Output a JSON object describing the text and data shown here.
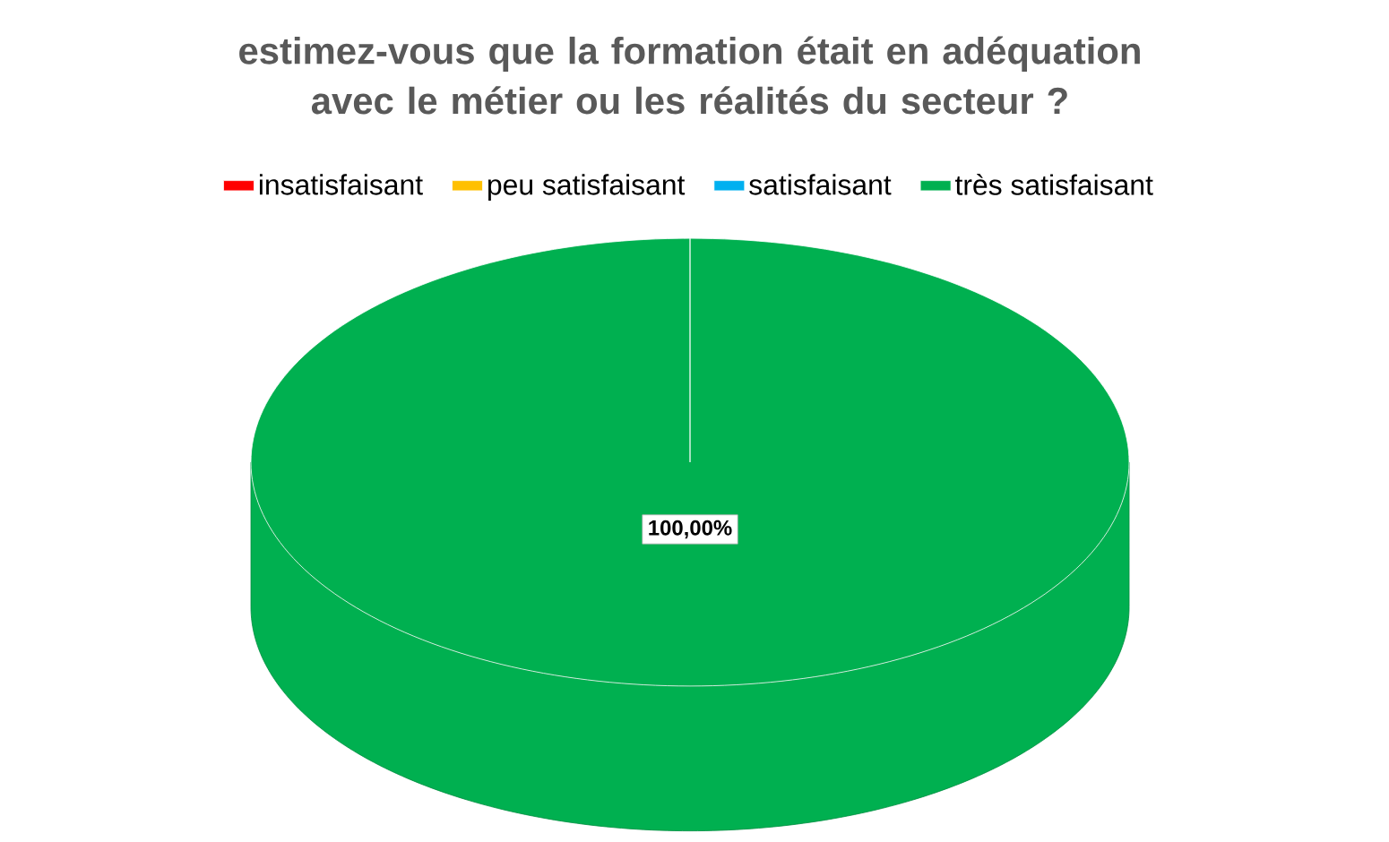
{
  "chart_data": {
    "type": "pie",
    "title": "estimez-vous que la formation était en adéquation avec le métier ou les réalités du secteur ?",
    "categories": [
      "insatisfaisant",
      "peu satisfaisant",
      "satisfaisant",
      "très satisfaisant"
    ],
    "values": [
      0,
      0,
      0,
      100
    ],
    "colors": [
      "#ff0000",
      "#ffc000",
      "#00b0f0",
      "#00b050"
    ],
    "value_labels": [
      null,
      null,
      null,
      "100,00%"
    ],
    "legend": "top"
  }
}
